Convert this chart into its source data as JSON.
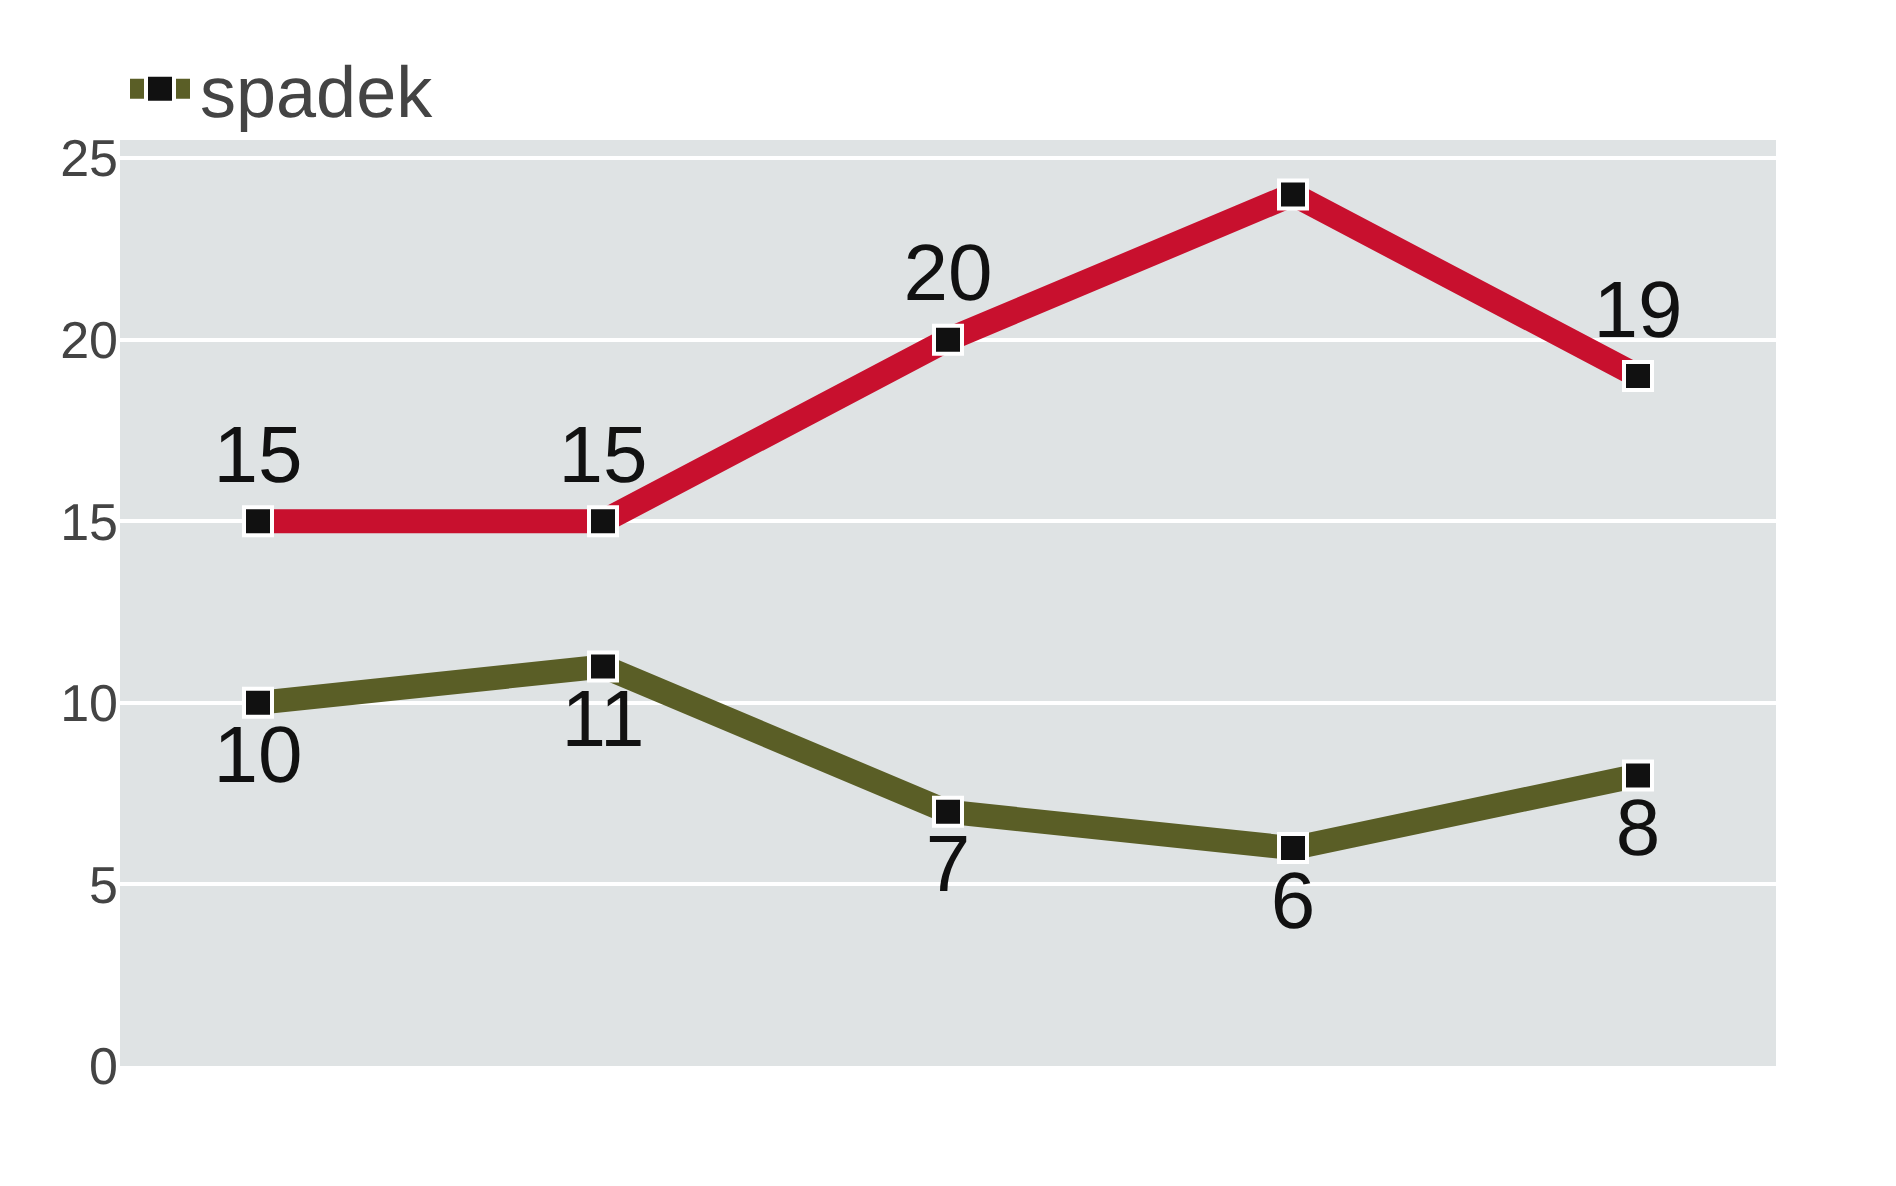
{
  "chart_data": {
    "type": "line",
    "categories": [
      null,
      null,
      null,
      null,
      null
    ],
    "series": [
      {
        "color": "#c8102e",
        "values": [
          15,
          15,
          20,
          24,
          19
        ],
        "value_labels": [
          "15",
          "15",
          "20",
          null,
          "19"
        ]
      },
      {
        "name": "spadek",
        "color": "#5a5e26",
        "values": [
          10,
          11,
          7,
          6,
          8
        ],
        "value_labels": [
          "10",
          "11",
          "7",
          "6",
          "8"
        ]
      }
    ],
    "ylim": [
      0,
      25.5
    ],
    "yticks": [
      0,
      5,
      10,
      15,
      20,
      25
    ],
    "grid": "y",
    "legend": "top left",
    "marker": "square",
    "line_style": "solid"
  }
}
